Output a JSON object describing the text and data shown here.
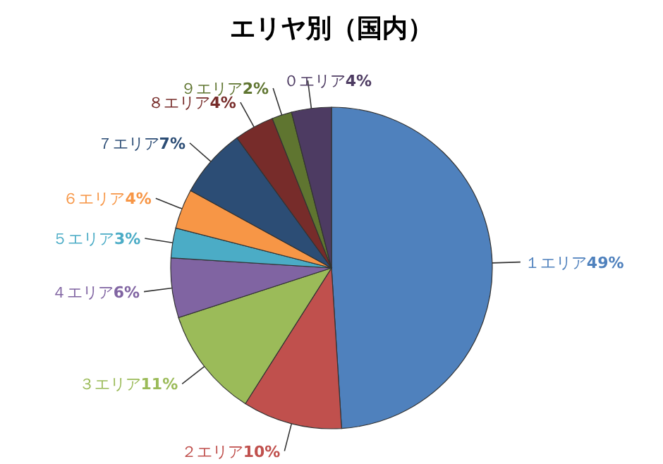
{
  "chart_data": {
    "type": "pie",
    "title": "エリヤ別（国内）",
    "categories": [
      "１エリア",
      "２エリア",
      "３エリア",
      "４エリア",
      "５エリア",
      "６エリア",
      "７エリア",
      "８エリア",
      "９エリア",
      "０エリア"
    ],
    "values": [
      49,
      10,
      11,
      6,
      3,
      4,
      7,
      4,
      2,
      4
    ],
    "value_labels": [
      "49%",
      "10%",
      "11%",
      "6%",
      "3%",
      "4%",
      "7%",
      "4%",
      "2%",
      "4%"
    ],
    "colors": [
      "#4f81bd",
      "#c0504d",
      "#9bbb59",
      "#8064a2",
      "#4bacc6",
      "#f79646",
      "#2c4d75",
      "#772c2a",
      "#5f7530",
      "#4d3b62"
    ],
    "legend": false
  }
}
